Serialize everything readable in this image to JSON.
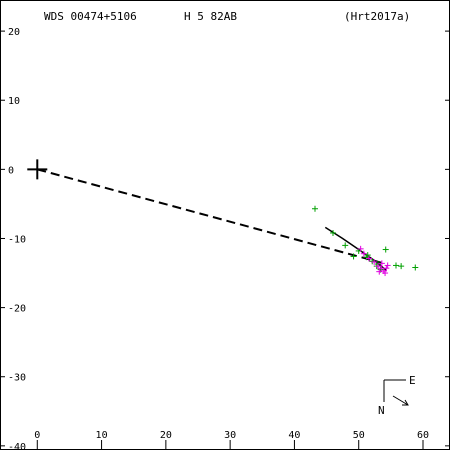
{
  "header": {
    "wds": "WDS 00474+5106",
    "discoverer": "H 5  82AB",
    "reference": "(Hrt2017a)"
  },
  "compass": {
    "east": "E",
    "north": "N"
  },
  "chart_data": {
    "type": "scatter",
    "title": "",
    "xlabel": "",
    "ylabel": "",
    "xlim": [
      -5.8,
      64.2
    ],
    "ylim": [
      -40.6,
      24.5
    ],
    "x_ticks": [
      0,
      10,
      20,
      30,
      40,
      50,
      60
    ],
    "y_ticks": [
      20,
      10,
      0,
      -10,
      -20,
      -30,
      -40
    ],
    "primary": [
      0,
      0
    ],
    "dashed_line": [
      [
        0,
        0
      ],
      [
        53.5,
        -13.5
      ]
    ],
    "orbit_arc": [
      [
        44.8,
        -8.4
      ],
      [
        47.5,
        -10.0
      ],
      [
        50.0,
        -11.6
      ],
      [
        52.3,
        -13.1
      ],
      [
        54.3,
        -14.6
      ]
    ],
    "colors": {
      "observations_green": "#00a000",
      "observations_magenta": "#e000e0",
      "lines": "#000000"
    },
    "series": [
      {
        "values": [
          [
            43.2,
            -5.7
          ],
          [
            46.0,
            -9.2
          ],
          [
            47.9,
            -11.0
          ],
          [
            49.2,
            -12.6
          ],
          [
            50.0,
            -11.8
          ],
          [
            51.2,
            -12.7
          ],
          [
            52.1,
            -13.3
          ],
          [
            53.0,
            -13.7
          ],
          [
            53.4,
            -14.5
          ],
          [
            54.2,
            -11.6
          ],
          [
            55.8,
            -13.9
          ],
          [
            56.6,
            -14.0
          ],
          [
            58.8,
            -14.2
          ],
          [
            51.4,
            -12.4
          ],
          [
            52.8,
            -14.0
          ]
        ]
      },
      {
        "values": [
          [
            50.3,
            -11.5
          ],
          [
            50.8,
            -12.2
          ],
          [
            51.6,
            -12.9
          ],
          [
            52.4,
            -13.4
          ],
          [
            53.0,
            -14.0
          ],
          [
            53.5,
            -14.3
          ],
          [
            53.9,
            -14.7
          ],
          [
            54.3,
            -14.3
          ],
          [
            53.6,
            -13.6
          ],
          [
            54.1,
            -15.0
          ],
          [
            53.2,
            -14.8
          ],
          [
            54.5,
            -13.9
          ]
        ]
      }
    ]
  }
}
